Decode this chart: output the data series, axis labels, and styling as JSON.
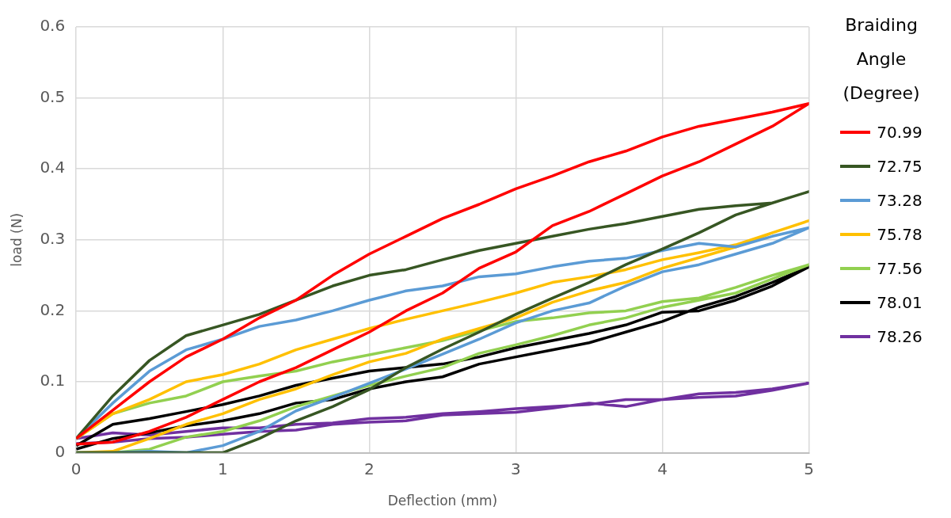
{
  "chart_data": {
    "type": "line",
    "xlabel": "Deflection (mm)",
    "ylabel": "load (N)",
    "legend_title": "Braiding Angle (Degree)",
    "legend": "right",
    "grid": true,
    "marker": "none",
    "line_style": "solid",
    "xlim": [
      0,
      5
    ],
    "xticks": [
      0,
      1,
      2,
      3,
      4,
      5
    ],
    "ylim": [
      0,
      0.6
    ],
    "yticks": [
      0,
      0.1,
      0.2,
      0.3,
      0.4,
      0.5,
      0.6
    ],
    "x": [
      0,
      0.25,
      0.5,
      0.75,
      1,
      1.25,
      1.5,
      1.75,
      2,
      2.25,
      2.5,
      2.75,
      3,
      3.25,
      3.5,
      3.75,
      4,
      4.25,
      4.5,
      4.75,
      5,
      4.75,
      4.5,
      4.25,
      4,
      3.75,
      3.5,
      3.25,
      3,
      2.75,
      2.5,
      2.25,
      2,
      1.75,
      1.5,
      1.25,
      1,
      0.75,
      0.5,
      0.25,
      0
    ],
    "series": [
      {
        "name": "70.99",
        "color": "#ff0000",
        "values": [
          0.02,
          0.06,
          0.1,
          0.135,
          0.16,
          0.19,
          0.215,
          0.25,
          0.28,
          0.305,
          0.33,
          0.35,
          0.372,
          0.39,
          0.41,
          0.425,
          0.445,
          0.46,
          0.47,
          0.48,
          0.492,
          0.46,
          0.435,
          0.41,
          0.39,
          0.365,
          0.34,
          0.32,
          0.283,
          0.26,
          0.225,
          0.2,
          0.17,
          0.145,
          0.12,
          0.1,
          0.075,
          0.05,
          0.03,
          0.015,
          0.012
        ]
      },
      {
        "name": "72.75",
        "color": "#375623",
        "values": [
          0.02,
          0.08,
          0.13,
          0.165,
          0.18,
          0.195,
          0.215,
          0.235,
          0.25,
          0.258,
          0.272,
          0.285,
          0.295,
          0.305,
          0.315,
          0.323,
          0.333,
          0.343,
          0.348,
          0.352,
          0.368,
          0.352,
          0.335,
          0.31,
          0.287,
          0.265,
          0.24,
          0.218,
          0.195,
          0.17,
          0.146,
          0.12,
          0.089,
          0.065,
          0.045,
          0.02,
          0,
          0,
          0,
          0,
          0
        ]
      },
      {
        "name": "73.28",
        "color": "#5b9bd5",
        "values": [
          0.02,
          0.07,
          0.115,
          0.145,
          0.16,
          0.178,
          0.187,
          0.2,
          0.215,
          0.228,
          0.235,
          0.248,
          0.252,
          0.262,
          0.27,
          0.274,
          0.285,
          0.295,
          0.29,
          0.305,
          0.317,
          0.295,
          0.28,
          0.265,
          0.255,
          0.235,
          0.211,
          0.2,
          0.183,
          0.16,
          0.139,
          0.118,
          0.098,
          0.078,
          0.059,
          0.03,
          0.01,
          0,
          0.002,
          0,
          0
        ]
      },
      {
        "name": "75.78",
        "color": "#ffc000",
        "values": [
          0.02,
          0.055,
          0.075,
          0.1,
          0.11,
          0.125,
          0.145,
          0.16,
          0.175,
          0.188,
          0.2,
          0.212,
          0.225,
          0.24,
          0.248,
          0.258,
          0.272,
          0.282,
          0.293,
          0.31,
          0.327,
          0.31,
          0.29,
          0.275,
          0.26,
          0.24,
          0.228,
          0.212,
          0.19,
          0.175,
          0.16,
          0.14,
          0.128,
          0.11,
          0.09,
          0.075,
          0.055,
          0.04,
          0.02,
          0.002,
          0
        ]
      },
      {
        "name": "77.56",
        "color": "#92d050",
        "values": [
          0.02,
          0.055,
          0.07,
          0.08,
          0.1,
          0.108,
          0.115,
          0.128,
          0.138,
          0.148,
          0.158,
          0.172,
          0.185,
          0.19,
          0.197,
          0.2,
          0.213,
          0.218,
          0.233,
          0.25,
          0.265,
          0.245,
          0.225,
          0.215,
          0.205,
          0.19,
          0.18,
          0.165,
          0.152,
          0.14,
          0.12,
          0.108,
          0.095,
          0.08,
          0.065,
          0.045,
          0.03,
          0.022,
          0.005,
          0,
          0
        ]
      },
      {
        "name": "78.01",
        "color": "#000000",
        "values": [
          0.01,
          0.04,
          0.048,
          0.058,
          0.068,
          0.08,
          0.095,
          0.105,
          0.115,
          0.12,
          0.125,
          0.135,
          0.148,
          0.158,
          0.168,
          0.18,
          0.198,
          0.2,
          0.215,
          0.235,
          0.262,
          0.24,
          0.22,
          0.205,
          0.185,
          0.17,
          0.155,
          0.145,
          0.135,
          0.125,
          0.107,
          0.1,
          0.09,
          0.075,
          0.07,
          0.055,
          0.045,
          0.038,
          0.028,
          0.02,
          0.005
        ]
      },
      {
        "name": "78.26",
        "color": "#7030a0",
        "values": [
          0.02,
          0.028,
          0.025,
          0.03,
          0.035,
          0.035,
          0.04,
          0.042,
          0.048,
          0.05,
          0.055,
          0.058,
          0.062,
          0.065,
          0.068,
          0.075,
          0.075,
          0.078,
          0.08,
          0.088,
          0.098,
          0.09,
          0.085,
          0.083,
          0.075,
          0.065,
          0.07,
          0.063,
          0.057,
          0.055,
          0.053,
          0.045,
          0.043,
          0.04,
          0.032,
          0.03,
          0.026,
          0.022,
          0.02,
          0.015,
          0.013
        ]
      }
    ]
  }
}
